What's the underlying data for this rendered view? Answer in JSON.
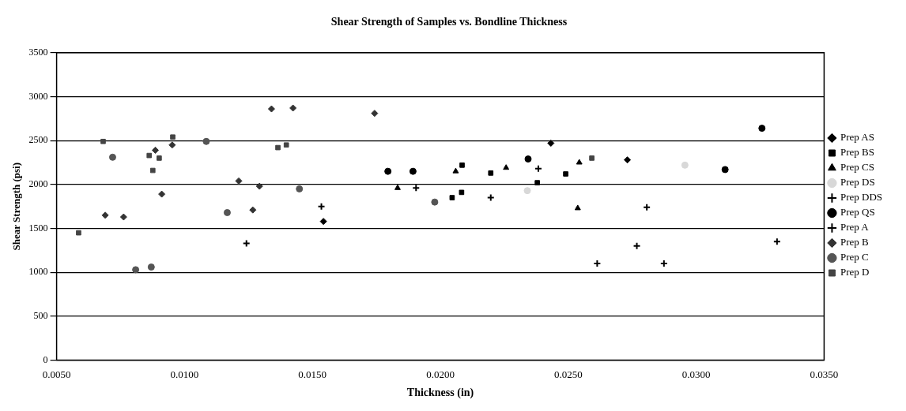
{
  "chart_data": {
    "type": "scatter",
    "title": "Shear Strength of Samples vs. Bondline Thickness",
    "xlabel": "Thickness (in)",
    "ylabel": "Shear Strength (psi)",
    "xlim": [
      0.005,
      0.035
    ],
    "xticks": [
      {
        "value": 0.005,
        "label": "0.0050"
      },
      {
        "value": 0.01,
        "label": "0.0100"
      },
      {
        "value": 0.015,
        "label": "0.0150"
      },
      {
        "value": 0.02,
        "label": "0.0200"
      },
      {
        "value": 0.025,
        "label": "0.0250"
      },
      {
        "value": 0.03,
        "label": "0.0300"
      },
      {
        "value": 0.035,
        "label": "0.0350"
      }
    ],
    "ylim": [
      0,
      3500
    ],
    "yticks": [
      0,
      500,
      1000,
      1500,
      2000,
      2500,
      3000,
      3500
    ],
    "grid": "y",
    "legend": "right",
    "series": [
      {
        "name": "Prep AS",
        "color": "#000000",
        "marker": "diamond",
        "x": [
          0.01543,
          0.02731,
          0.02432
        ],
        "values": [
          1580,
          2280,
          2470
        ]
      },
      {
        "name": "Prep BS",
        "color": "#000000",
        "marker": "square",
        "x": [
          0.02085,
          0.02197,
          0.02379,
          0.0249,
          0.02046,
          0.02083
        ],
        "values": [
          2220,
          2130,
          2020,
          2120,
          1850,
          1910
        ]
      },
      {
        "name": "Prep CS",
        "color": "#000000",
        "marker": "triangle",
        "x": [
          0.01833,
          0.0206,
          0.02257,
          0.02543,
          0.02537
        ],
        "values": [
          1960,
          2150,
          2190,
          2250,
          1730
        ]
      },
      {
        "name": "Prep DS",
        "color": "#d8d8d8",
        "marker": "circle",
        "x": [
          0.0234,
          0.02956
        ],
        "values": [
          1930,
          2220
        ]
      },
      {
        "name": "Prep DDS",
        "color": "#000000",
        "marker": "cross",
        "x": [
          0.01905,
          0.02197,
          0.02383,
          0.02613,
          0.02768,
          0.02807,
          0.02874,
          0.03316
        ],
        "values": [
          1960,
          1850,
          2180,
          1100,
          1300,
          1740,
          1100,
          1350
        ]
      },
      {
        "name": "Prep QS",
        "color": "#000000",
        "marker": "circle",
        "x": [
          0.01795,
          0.01893,
          0.02343,
          0.03113,
          0.03257
        ],
        "values": [
          2150,
          2150,
          2290,
          2170,
          2640
        ]
      },
      {
        "name": "Prep A",
        "color": "#000000",
        "marker": "cross",
        "x": [
          0.01242,
          0.01535
        ],
        "values": [
          1330,
          1750
        ]
      },
      {
        "name": "Prep B",
        "color": "#333333",
        "marker": "diamond",
        "x": [
          0.0069,
          0.00762,
          0.00886,
          0.00952,
          0.00911,
          0.01212,
          0.01293,
          0.01267,
          0.0134,
          0.01424,
          0.01743
        ],
        "values": [
          1650,
          1630,
          2390,
          2450,
          1890,
          2040,
          1980,
          1710,
          2860,
          2870,
          2810
        ]
      },
      {
        "name": "Prep C",
        "color": "#555555",
        "marker": "circle",
        "x": [
          0.00719,
          0.01085,
          0.00809,
          0.0087,
          0.01167,
          0.01449,
          0.01978
        ],
        "values": [
          2310,
          2490,
          1030,
          1060,
          1680,
          1950,
          1800
        ]
      },
      {
        "name": "Prep D",
        "color": "#444444",
        "marker": "square",
        "x": [
          0.00586,
          0.00682,
          0.00862,
          0.00901,
          0.00876,
          0.00954,
          0.01365,
          0.01398,
          0.02592
        ],
        "values": [
          1450,
          2490,
          2330,
          2300,
          2160,
          2540,
          2420,
          2450,
          2300
        ]
      }
    ]
  }
}
